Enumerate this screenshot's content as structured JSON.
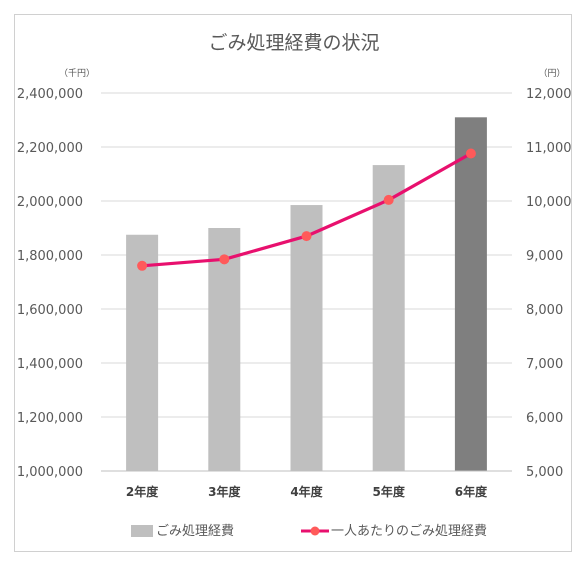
{
  "chart_data": {
    "type": "bar+line",
    "title": "ごみ処理経費の状況",
    "categories": [
      "2年度",
      "3年度",
      "4年度",
      "5年度",
      "6年度"
    ],
    "left_axis": {
      "unit_label": "（千円）",
      "ylim": [
        1000000,
        2400000
      ],
      "ticks": [
        "1,000,000",
        "1,200,000",
        "1,400,000",
        "1,600,000",
        "1,800,000",
        "2,000,000",
        "2,200,000",
        "2,400,000"
      ]
    },
    "right_axis": {
      "unit_label": "（円）",
      "ylim": [
        5000,
        12000
      ],
      "ticks": [
        "5,000",
        "6,000",
        "7,000",
        "8,000",
        "9,000",
        "10,000",
        "11,000",
        "12,000"
      ]
    },
    "series": [
      {
        "name": "ごみ処理経費",
        "type": "bar",
        "axis": "left",
        "values": [
          1875000,
          1900000,
          1985000,
          2133000,
          2310000
        ],
        "colors": [
          "#bfbfbf",
          "#bfbfbf",
          "#bfbfbf",
          "#bfbfbf",
          "#7f7f7f"
        ]
      },
      {
        "name": "一人あたりのごみ処理経費",
        "type": "line",
        "axis": "right",
        "values": [
          8800,
          8920,
          9350,
          10020,
          10880
        ],
        "line_color": "#e8106e",
        "marker_color": "#ff5a5a"
      }
    ],
    "grid": true,
    "legend_position": "bottom"
  }
}
